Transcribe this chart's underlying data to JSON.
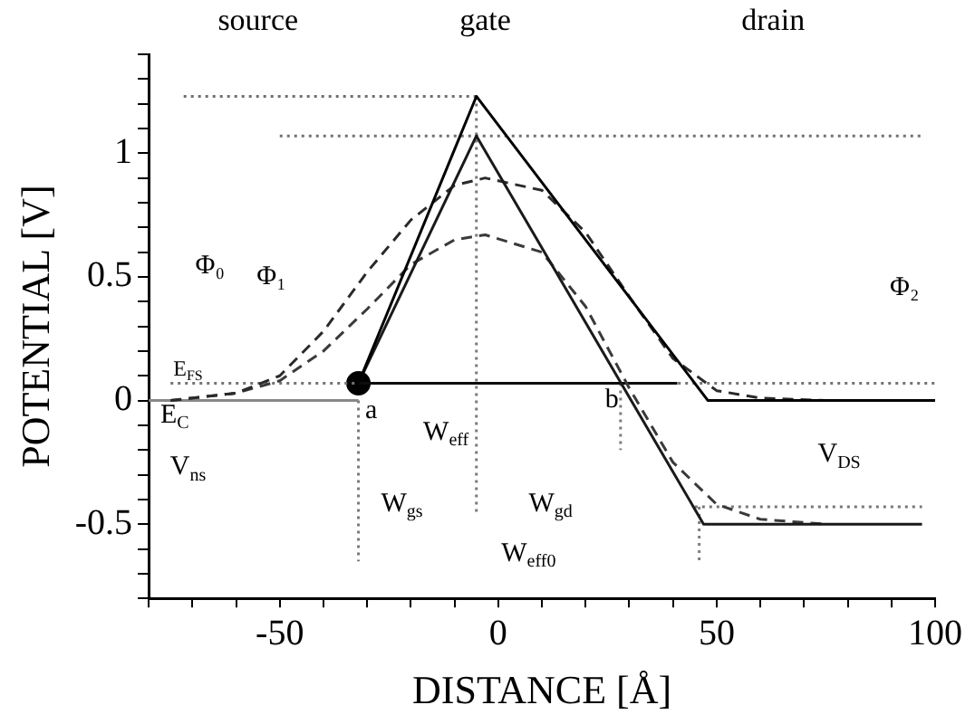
{
  "chart_data": {
    "type": "line",
    "xlabel": "DISTANCE [Å]",
    "ylabel": "POTENTIAL [V]",
    "xlim": [
      -80,
      100
    ],
    "ylim": [
      -0.8,
      1.4
    ],
    "xticks": [
      {
        "value": -80,
        "label": null
      },
      {
        "value": -70,
        "label": null
      },
      {
        "value": -60,
        "label": null
      },
      -50,
      {
        "value": -40,
        "label": null
      },
      {
        "value": -30,
        "label": null
      },
      {
        "value": -20,
        "label": null
      },
      {
        "value": -10,
        "label": null
      },
      0,
      {
        "value": 10,
        "label": null
      },
      {
        "value": 20,
        "label": null
      },
      {
        "value": 30,
        "label": null
      },
      {
        "value": 40,
        "label": null
      },
      50,
      {
        "value": 60,
        "label": null
      },
      {
        "value": 70,
        "label": null
      },
      {
        "value": 80,
        "label": null
      },
      {
        "value": 90,
        "label": null
      },
      100
    ],
    "yticks": [
      {
        "value": -0.8,
        "label": null
      },
      {
        "value": -0.7,
        "label": null
      },
      {
        "value": -0.6,
        "label": null
      },
      -0.5,
      {
        "value": -0.4,
        "label": null
      },
      {
        "value": -0.3,
        "label": null
      },
      {
        "value": -0.2,
        "label": null
      },
      {
        "value": -0.1,
        "label": null
      },
      0,
      {
        "value": 0.1,
        "label": null
      },
      {
        "value": 0.2,
        "label": null
      },
      {
        "value": 0.3,
        "label": null
      },
      {
        "value": 0.4,
        "label": null
      },
      0.5,
      {
        "value": 0.6,
        "label": null
      },
      {
        "value": 0.7,
        "label": null
      },
      {
        "value": 0.8,
        "label": null
      },
      {
        "value": 0.9,
        "label": null
      },
      1,
      {
        "value": 1.1,
        "label": null
      },
      {
        "value": 1.2,
        "label": null
      },
      {
        "value": 1.3,
        "label": null
      },
      {
        "value": 1.4,
        "label": null
      }
    ],
    "series": [
      {
        "color": "#000000",
        "line_style": "solid",
        "x": [
          -32,
          -5,
          48,
          100
        ],
        "values": [
          0.07,
          1.23,
          0,
          0
        ]
      },
      {
        "color": "#1a1a1a",
        "line_style": "solid",
        "x": [
          -32,
          -5,
          47,
          97
        ],
        "values": [
          0.07,
          1.07,
          -0.5,
          -0.5
        ]
      },
      {
        "color": "#2a2a2a",
        "line_style": "dashed",
        "x": [
          -75,
          -60,
          -50,
          -40,
          -30,
          -20,
          -10,
          -3,
          10,
          20,
          30,
          40,
          50,
          60,
          75
        ],
        "values": [
          0,
          0.03,
          0.1,
          0.28,
          0.52,
          0.73,
          0.87,
          0.9,
          0.85,
          0.68,
          0.42,
          0.17,
          0.04,
          0.01,
          0
        ]
      },
      {
        "color": "#3a3a3a",
        "line_style": "dashed",
        "x": [
          -75,
          -60,
          -50,
          -40,
          -30,
          -20,
          -10,
          -3,
          10,
          20,
          30,
          40,
          50,
          60,
          75
        ],
        "values": [
          0,
          0.03,
          0.08,
          0.2,
          0.37,
          0.55,
          0.65,
          0.67,
          0.6,
          0.38,
          0.05,
          -0.25,
          -0.42,
          -0.48,
          -0.5
        ]
      },
      {
        "color": "#888888",
        "line_style": "solid",
        "x": [
          -80,
          -32
        ],
        "values": [
          0,
          0
        ]
      },
      {
        "color": "#0d0d0d",
        "line_style": "solid",
        "x": [
          -32,
          41
        ],
        "values": [
          0.07,
          0.07
        ]
      },
      {
        "color": "#707070",
        "line_style": "dotted",
        "x": [
          -72,
          -5
        ],
        "values": [
          1.23,
          1.23
        ]
      },
      {
        "color": "#727272",
        "line_style": "dotted",
        "x": [
          -50,
          97
        ],
        "values": [
          1.07,
          1.07
        ]
      },
      {
        "color": "#747474",
        "line_style": "dotted",
        "x": [
          -75,
          100
        ],
        "values": [
          0.07,
          0.07
        ]
      },
      {
        "color": "#767676",
        "line_style": "dotted",
        "x": [
          45,
          97
        ],
        "values": [
          -0.43,
          -0.43
        ]
      },
      {
        "color": "#787878",
        "line_style": "dotted",
        "x": [
          -32,
          -32
        ],
        "values": [
          0,
          -0.65
        ]
      },
      {
        "color": "#7a7a7a",
        "line_style": "dotted",
        "x": [
          -5,
          -5
        ],
        "values": [
          1.23,
          -0.45
        ]
      },
      {
        "color": "#7c7c7c",
        "line_style": "dotted",
        "x": [
          28,
          28
        ],
        "values": [
          0.07,
          -0.2
        ]
      },
      {
        "color": "#7e7e7e",
        "line_style": "dotted",
        "x": [
          46,
          46
        ],
        "values": [
          -0.43,
          -0.65
        ]
      },
      {
        "type": "scatter",
        "color": "#000000",
        "marker": "circle",
        "x": [
          -32
        ],
        "values": [
          0.07
        ]
      }
    ],
    "annotations": [
      "source",
      "gate",
      "drain",
      "Φ₀",
      "Φ₁",
      "Φ₂",
      "E$_{FS}$",
      "E$_{C}$",
      "V$_{ns}$",
      "a",
      {
        "text": "b",
        "x": 26,
        "y": 0.0
      },
      "W$_{eff}$",
      "W$_{gs}$",
      "W$_{gd}$",
      "W$_{eff0}$",
      "V$_{DS}$"
    ]
  }
}
